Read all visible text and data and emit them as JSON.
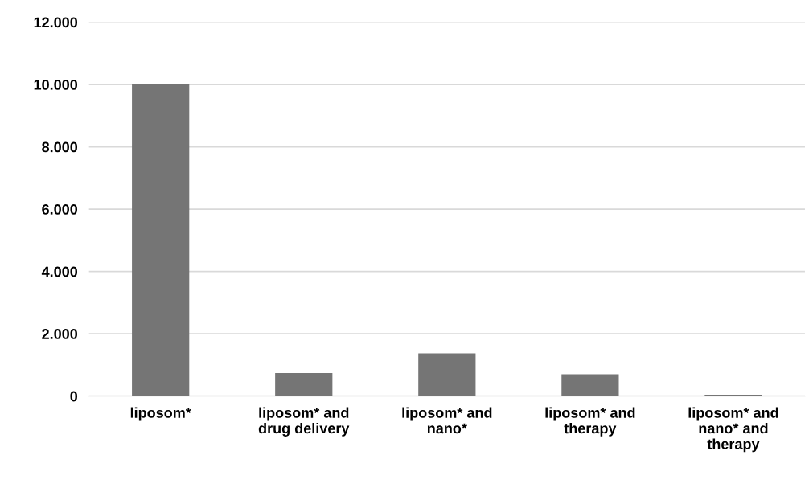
{
  "chart_data": {
    "type": "bar",
    "categories": [
      "liposom*",
      "liposom* and\ndrug delivery",
      "liposom* and\nnano*",
      "liposom* and\ntherapy",
      "liposom* and\nnano* and\ntherapy"
    ],
    "values": [
      10000,
      740,
      1370,
      700,
      40
    ],
    "color": "#757575",
    "ylim": [
      0,
      12000
    ],
    "yticks": [
      {
        "value": 0,
        "label": "0"
      },
      {
        "value": 2000,
        "label": "2.000"
      },
      {
        "value": 4000,
        "label": "4.000"
      },
      {
        "value": 6000,
        "label": "6.000"
      },
      {
        "value": 8000,
        "label": "8.000"
      },
      {
        "value": 10000,
        "label": "10.000"
      },
      {
        "value": 12000,
        "label": "12.000"
      }
    ],
    "grid": "y",
    "legend": false
  }
}
